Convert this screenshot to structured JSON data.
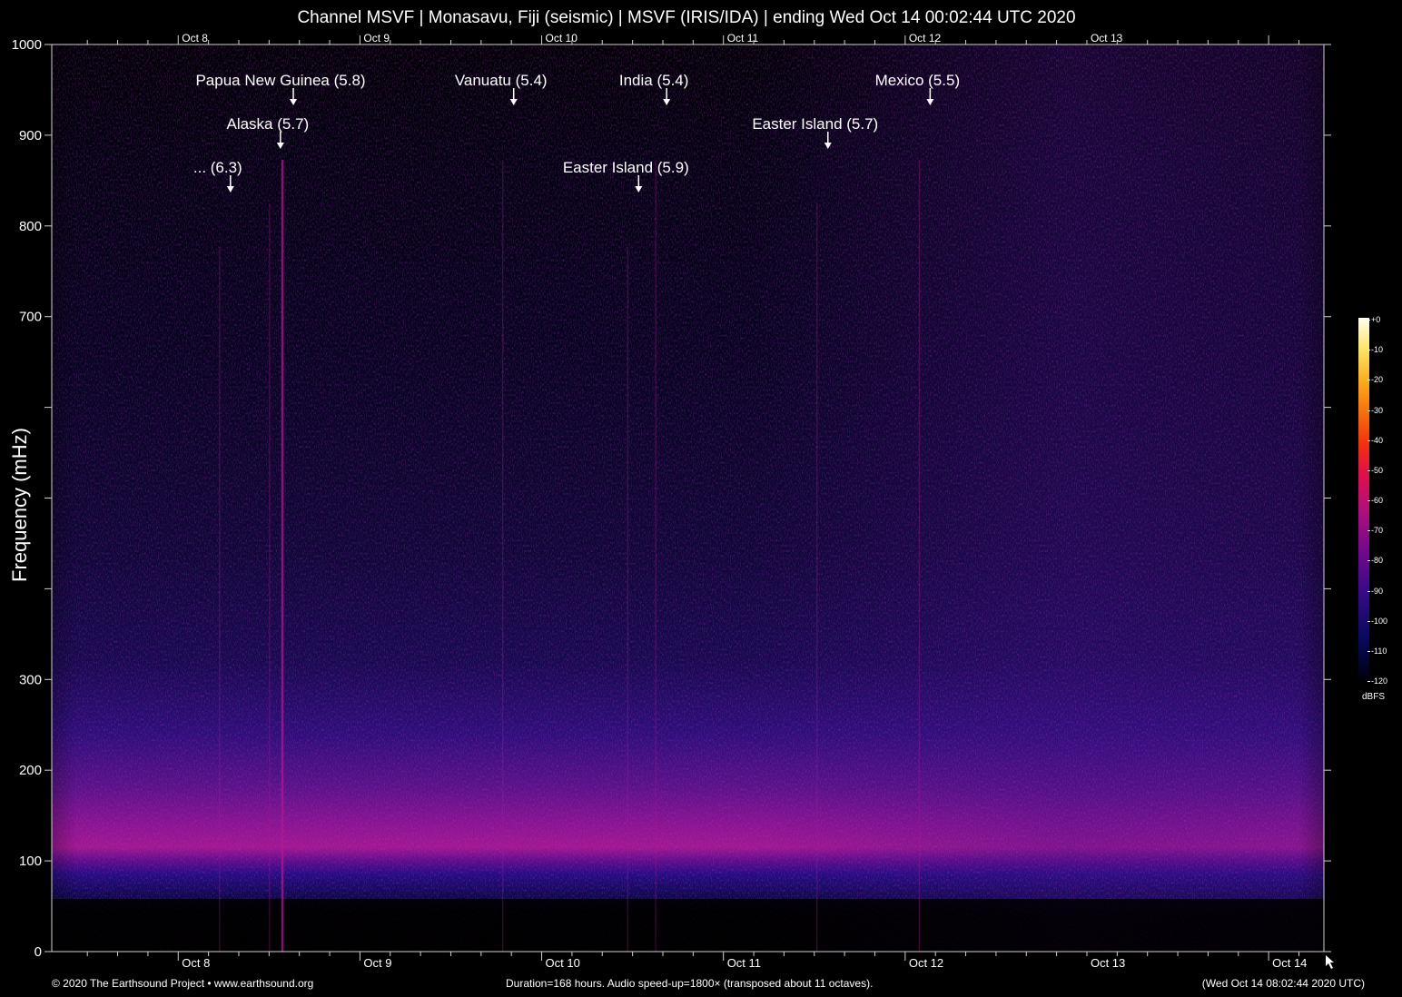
{
  "title": "Channel MSVF | Monasavu, Fiji (seismic) | MSVF (IRIS/IDA) | ending Wed Oct 14 00:02:44 UTC 2020",
  "footer": {
    "left": "© 2020 The Earthsound Project • www.earthsound.org",
    "center": "Duration=168 hours. Audio speed-up=1800× (transposed about 11 octaves).",
    "right": "(Wed Oct 14 08:02:44 2020 UTC)"
  },
  "colorbar": {
    "unit": "dBFS",
    "ticks": [
      "+0",
      "-10",
      "-20",
      "-30",
      "-40",
      "-50",
      "-60",
      "-70",
      "-80",
      "-90",
      "-100",
      "-110",
      "-120"
    ]
  },
  "chart_data": {
    "type": "heatmap",
    "title": "Channel MSVF | Monasavu, Fiji (seismic) | MSVF (IRIS/IDA) | ending Wed Oct 14 00:02:44 UTC 2020",
    "xlabel": "",
    "ylabel": "Frequency (mHz)",
    "ylim": [
      0,
      1000
    ],
    "xlim_hours": [
      0,
      168
    ],
    "y_ticks": [
      {
        "value": 0,
        "label": "0"
      },
      {
        "value": 100,
        "label": "100"
      },
      {
        "value": 200,
        "label": "200"
      },
      {
        "value": 300,
        "label": "300"
      },
      {
        "value": 400,
        "label": ""
      },
      {
        "value": 500,
        "label": ""
      },
      {
        "value": 600,
        "label": ""
      },
      {
        "value": 700,
        "label": "700"
      },
      {
        "value": 800,
        "label": "800"
      },
      {
        "value": 900,
        "label": "900"
      },
      {
        "value": 1000,
        "label": "1000"
      }
    ],
    "x_ticks": [
      {
        "hour": 16.7,
        "label": "Oct  8"
      },
      {
        "hour": 40.7,
        "label": "Oct  9"
      },
      {
        "hour": 64.7,
        "label": "Oct 10"
      },
      {
        "hour": 88.7,
        "label": "Oct 11"
      },
      {
        "hour": 112.7,
        "label": "Oct 12"
      },
      {
        "hour": 136.7,
        "label": "Oct 13"
      },
      {
        "hour": 160.7,
        "label": "Oct 14"
      }
    ],
    "top_x_ticks": [
      {
        "hour": 16.7,
        "label": "Oct  8"
      },
      {
        "hour": 40.7,
        "label": "Oct  9"
      },
      {
        "hour": 64.7,
        "label": "Oct 10"
      },
      {
        "hour": 88.7,
        "label": "Oct 11"
      },
      {
        "hour": 112.7,
        "label": "Oct 12"
      },
      {
        "hour": 136.7,
        "label": "Oct 13"
      }
    ],
    "colorbar_range_dbfs": [
      -120,
      0
    ],
    "annotations": [
      {
        "text": "Papua New Guinea (5.8)",
        "hour": 31.9,
        "level": 0
      },
      {
        "text": "Vanuatu (5.4)",
        "hour": 61.0,
        "level": 0
      },
      {
        "text": "India (5.4)",
        "hour": 81.2,
        "level": 0
      },
      {
        "text": "Mexico (5.5)",
        "hour": 116.0,
        "level": 0
      },
      {
        "text": "Alaska (5.7)",
        "hour": 30.2,
        "level": 1
      },
      {
        "text": "Easter Island (5.7)",
        "hour": 102.5,
        "level": 1
      },
      {
        "text": "... (6.3)",
        "hour": 23.6,
        "level": 2
      },
      {
        "text": "Easter Island (5.9)",
        "hour": 77.5,
        "level": 2
      }
    ]
  }
}
